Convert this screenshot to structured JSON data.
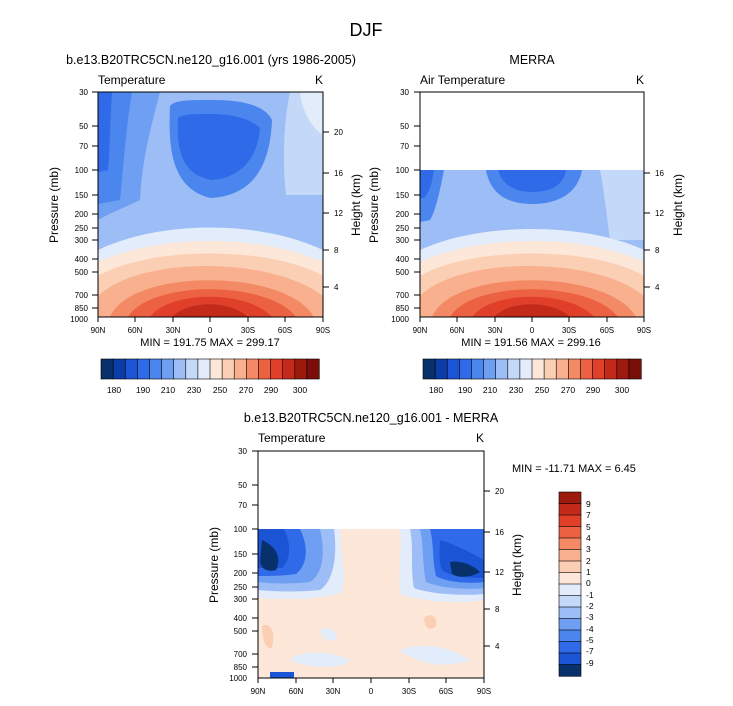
{
  "page": {
    "title": "DJF"
  },
  "chart_data": [
    {
      "type": "heatmap",
      "title": "b.e13.B20TRC5CN.ne120_g16.001 (yrs 1986-2005)",
      "left_label": "Temperature",
      "right_label": "K",
      "ylabel": "Pressure (mb)",
      "y2label": "Height (km)",
      "x_ticks": [
        "90N",
        "60N",
        "30N",
        "0",
        "30S",
        "60S",
        "90S"
      ],
      "y_ticks": [
        "30",
        "50",
        "70",
        "100",
        "150",
        "200",
        "250",
        "300",
        "400",
        "500",
        "700",
        "850",
        "1000"
      ],
      "y2_ticks": [
        "20",
        "16",
        "12",
        "8",
        "4"
      ],
      "min_max": "MIN = 191.75   MAX = 299.17",
      "colorbar_labels": [
        "180",
        "190",
        "210",
        "230",
        "250",
        "270",
        "290",
        "300"
      ],
      "colorbar_colors": [
        "#08306b",
        "#0b3ca8",
        "#1c54d6",
        "#2f6ae8",
        "#4b86ee",
        "#6e9ff2",
        "#9cbdf5",
        "#c4d8f8",
        "#e2ecfb",
        "#fde7d8",
        "#fbcfb4",
        "#f8b08f",
        "#f48a65",
        "#ec6141",
        "#e0402a",
        "#c42a1a",
        "#9c1a0e",
        "#7a0e08"
      ],
      "data_top_pressure": 30
    },
    {
      "type": "heatmap",
      "title": "MERRA",
      "left_label": "Air Temperature",
      "right_label": "K",
      "ylabel": "Pressure (mb)",
      "y2label": "Height (km)",
      "x_ticks": [
        "90N",
        "60N",
        "30N",
        "0",
        "30S",
        "60S",
        "90S"
      ],
      "y_ticks": [
        "30",
        "50",
        "70",
        "100",
        "150",
        "200",
        "250",
        "300",
        "400",
        "500",
        "700",
        "850",
        "1000"
      ],
      "y2_ticks": [
        "16",
        "12",
        "8",
        "4"
      ],
      "min_max": "MIN = 191.56   MAX = 299.16",
      "colorbar_labels": [
        "180",
        "190",
        "210",
        "230",
        "250",
        "270",
        "290",
        "300"
      ],
      "colorbar_colors": [
        "#08306b",
        "#0b3ca8",
        "#1c54d6",
        "#2f6ae8",
        "#4b86ee",
        "#6e9ff2",
        "#9cbdf5",
        "#c4d8f8",
        "#e2ecfb",
        "#fde7d8",
        "#fbcfb4",
        "#f8b08f",
        "#f48a65",
        "#ec6141",
        "#e0402a",
        "#c42a1a",
        "#9c1a0e",
        "#7a0e08"
      ],
      "data_top_pressure": 100
    },
    {
      "type": "heatmap",
      "title": "b.e13.B20TRC5CN.ne120_g16.001 - MERRA",
      "left_label": "Temperature",
      "right_label": "K",
      "ylabel": "Pressure (mb)",
      "y2label": "Height (km)",
      "x_ticks": [
        "90N",
        "60N",
        "30N",
        "0",
        "30S",
        "60S",
        "90S"
      ],
      "y_ticks": [
        "30",
        "50",
        "70",
        "100",
        "150",
        "200",
        "250",
        "300",
        "400",
        "500",
        "700",
        "850",
        "1000"
      ],
      "y2_ticks": [
        "20",
        "16",
        "12",
        "8",
        "4"
      ],
      "min_max": "MIN = -11.71   MAX =   6.45",
      "colorbar_labels": [
        "9",
        "7",
        "5",
        "4",
        "3",
        "2",
        "1",
        "0",
        "-1",
        "-2",
        "-3",
        "-4",
        "-5",
        "-7",
        "-9"
      ],
      "colorbar_colors": [
        "#9c1a0e",
        "#c42a1a",
        "#e0402a",
        "#ec6141",
        "#f48a65",
        "#f8b08f",
        "#fbcfb4",
        "#fde7d8",
        "#e2ecfb",
        "#c4d8f8",
        "#9cbdf5",
        "#6e9ff2",
        "#4b86ee",
        "#2f6ae8",
        "#1c54d6",
        "#08306b"
      ],
      "data_top_pressure": 100
    }
  ]
}
